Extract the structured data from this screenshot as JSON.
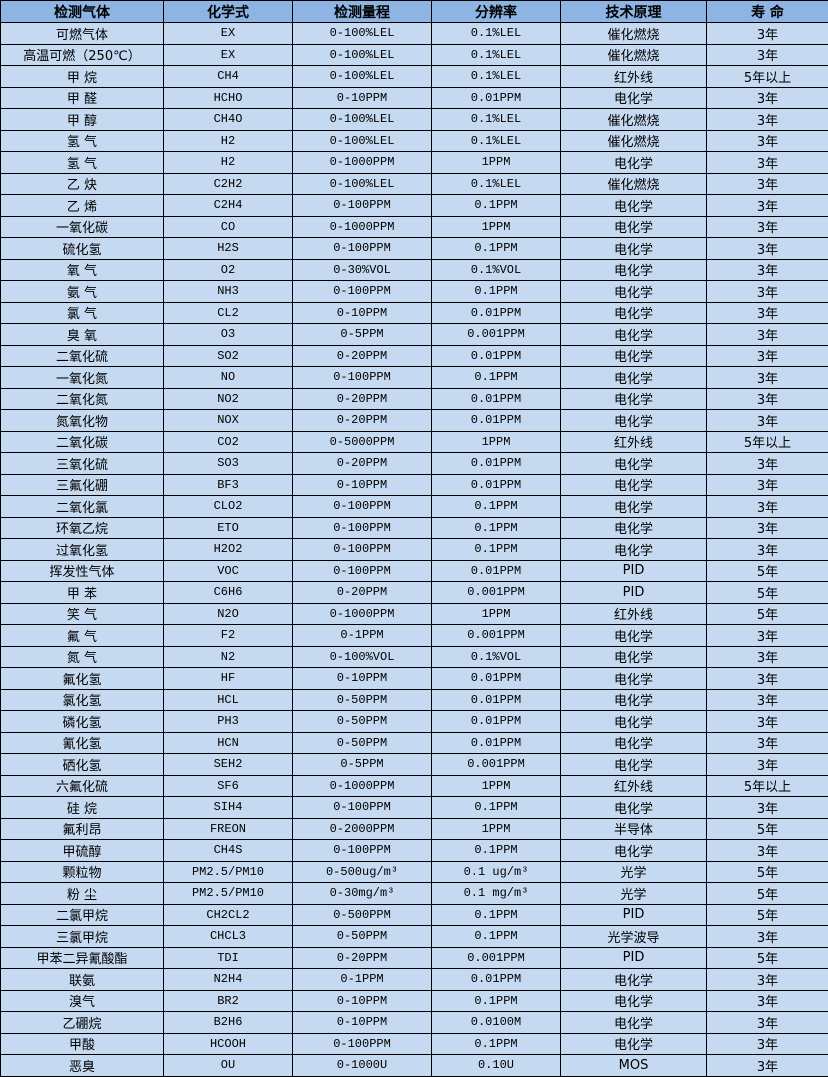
{
  "colors": {
    "header_bg": "#8db4e2",
    "row_bg": "#c5d9f1",
    "border": "#000000"
  },
  "headers": [
    "检测气体",
    "化学式",
    "检测量程",
    "分辨率",
    "技术原理",
    "寿 命"
  ],
  "rows": [
    [
      "可燃气体",
      "EX",
      "0-100%LEL",
      "0.1%LEL",
      "催化燃烧",
      "3年"
    ],
    [
      "高温可燃（250℃）",
      "EX",
      "0-100%LEL",
      "0.1%LEL",
      "催化燃烧",
      "3年"
    ],
    [
      "甲 烷",
      "CH4",
      "0-100%LEL",
      "0.1%LEL",
      "红外线",
      "5年以上"
    ],
    [
      "甲 醛",
      "HCHO",
      "0-10PPM",
      "0.01PPM",
      "电化学",
      "3年"
    ],
    [
      "甲 醇",
      "CH4O",
      "0-100%LEL",
      "0.1%LEL",
      "催化燃烧",
      "3年"
    ],
    [
      "氢 气",
      "H2",
      "0-100%LEL",
      "0.1%LEL",
      "催化燃烧",
      "3年"
    ],
    [
      "氢 气",
      "H2",
      "0-1000PPM",
      "1PPM",
      "电化学",
      "3年"
    ],
    [
      "乙 炔",
      "C2H2",
      "0-100%LEL",
      "0.1%LEL",
      "催化燃烧",
      "3年"
    ],
    [
      "乙 烯",
      "C2H4",
      "0-100PPM",
      "0.1PPM",
      "电化学",
      "3年"
    ],
    [
      "一氧化碳",
      "CO",
      "0-1000PPM",
      "1PPM",
      "电化学",
      "3年"
    ],
    [
      "硫化氢",
      "H2S",
      "0-100PPM",
      "0.1PPM",
      "电化学",
      "3年"
    ],
    [
      "氧 气",
      "O2",
      "0-30%VOL",
      "0.1%VOL",
      "电化学",
      "3年"
    ],
    [
      "氨 气",
      "NH3",
      "0-100PPM",
      "0.1PPM",
      "电化学",
      "3年"
    ],
    [
      "氯 气",
      "CL2",
      "0-10PPM",
      "0.01PPM",
      "电化学",
      "3年"
    ],
    [
      "臭 氧",
      "O3",
      "0-5PPM",
      "0.001PPM",
      "电化学",
      "3年"
    ],
    [
      "二氧化硫",
      "SO2",
      "0-20PPM",
      "0.01PPM",
      "电化学",
      "3年"
    ],
    [
      "一氧化氮",
      "NO",
      "0-100PPM",
      "0.1PPM",
      "电化学",
      "3年"
    ],
    [
      "二氧化氮",
      "NO2",
      "0-20PPM",
      "0.01PPM",
      "电化学",
      "3年"
    ],
    [
      "氮氧化物",
      "NOX",
      "0-20PPM",
      "0.01PPM",
      "电化学",
      "3年"
    ],
    [
      "二氧化碳",
      "CO2",
      "0-5000PPM",
      "1PPM",
      "红外线",
      "5年以上"
    ],
    [
      "三氧化硫",
      "SO3",
      "0-20PPM",
      "0.01PPM",
      "电化学",
      "3年"
    ],
    [
      "三氟化硼",
      "BF3",
      "0-10PPM",
      "0.01PPM",
      "电化学",
      "3年"
    ],
    [
      "二氧化氯",
      "CLO2",
      "0-100PPM",
      "0.1PPM",
      "电化学",
      "3年"
    ],
    [
      "环氧乙烷",
      "ETO",
      "0-100PPM",
      "0.1PPM",
      "电化学",
      "3年"
    ],
    [
      "过氧化氢",
      "H2O2",
      "0-100PPM",
      "0.1PPM",
      "电化学",
      "3年"
    ],
    [
      "挥发性气体",
      "VOC",
      "0-100PPM",
      "0.01PPM",
      "PID",
      "5年"
    ],
    [
      "甲 苯",
      "C6H6",
      "0-20PPM",
      "0.001PPM",
      "PID",
      "5年"
    ],
    [
      "笑 气",
      "N2O",
      "0-1000PPM",
      "1PPM",
      "红外线",
      "5年"
    ],
    [
      "氟 气",
      "F2",
      "0-1PPM",
      "0.001PPM",
      "电化学",
      "3年"
    ],
    [
      "氮 气",
      "N2",
      "0-100%VOL",
      "0.1%VOL",
      "电化学",
      "3年"
    ],
    [
      "氟化氢",
      "HF",
      "0-10PPM",
      "0.01PPM",
      "电化学",
      "3年"
    ],
    [
      "氯化氢",
      "HCL",
      "0-50PPM",
      "0.01PPM",
      "电化学",
      "3年"
    ],
    [
      "磷化氢",
      "PH3",
      "0-50PPM",
      "0.01PPM",
      "电化学",
      "3年"
    ],
    [
      "氰化氢",
      "HCN",
      "0-50PPM",
      "0.01PPM",
      "电化学",
      "3年"
    ],
    [
      "硒化氢",
      "SEH2",
      "0-5PPM",
      "0.001PPM",
      "电化学",
      "3年"
    ],
    [
      "六氟化硫",
      "SF6",
      "0-1000PPM",
      "1PPM",
      "红外线",
      "5年以上"
    ],
    [
      "硅 烷",
      "SIH4",
      "0-100PPM",
      "0.1PPM",
      "电化学",
      "3年"
    ],
    [
      "氟利昂",
      "FREON",
      "0-2000PPM",
      "1PPM",
      "半导体",
      "5年"
    ],
    [
      "甲硫醇",
      "CH4S",
      "0-100PPM",
      "0.1PPM",
      "电化学",
      "3年"
    ],
    [
      "颗粒物",
      "PM2.5/PM10",
      "0-500ug/m³",
      "0.1 ug/m³",
      "光学",
      "5年"
    ],
    [
      "粉 尘",
      "PM2.5/PM10",
      "0-30mg/m³",
      "0.1 mg/m³",
      "光学",
      "5年"
    ],
    [
      "二氯甲烷",
      "CH2CL2",
      "0-500PPM",
      "0.1PPM",
      "PID",
      "5年"
    ],
    [
      "三氯甲烷",
      "CHCL3",
      "0-50PPM",
      "0.1PPM",
      "光学波导",
      "3年"
    ],
    [
      "甲苯二异氰酸酯",
      "TDI",
      "0-20PPM",
      "0.001PPM",
      "PID",
      "5年"
    ],
    [
      "联氨",
      "N2H4",
      "0-1PPM",
      "0.01PPM",
      "电化学",
      "3年"
    ],
    [
      "溴气",
      "BR2",
      "0-10PPM",
      "0.1PPM",
      "电化学",
      "3年"
    ],
    [
      "乙硼烷",
      "B2H6",
      "0-10PPM",
      "0.0100M",
      "电化学",
      "3年"
    ],
    [
      "甲酸",
      "HCOOH",
      "0-100PPM",
      "0.1PPM",
      "电化学",
      "3年"
    ],
    [
      "恶臭",
      "OU",
      "0-1000U",
      "0.10U",
      "MOS",
      "3年"
    ]
  ]
}
